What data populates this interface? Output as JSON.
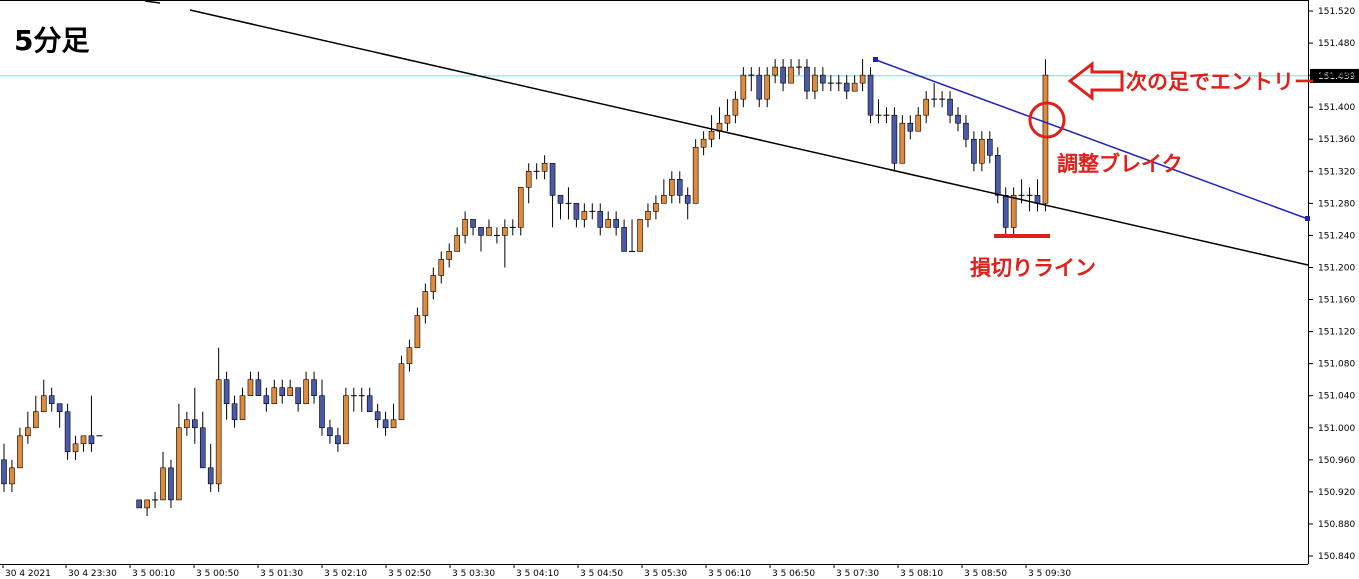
{
  "chart_data": {
    "type": "candlestick",
    "title": "5分足",
    "y_axis_ticks": [
      "151.520",
      "151.480",
      "151.440",
      "151.400",
      "151.360",
      "151.320",
      "151.280",
      "151.240",
      "151.200",
      "151.160",
      "151.120",
      "151.080",
      "151.040",
      "151.000",
      "150.960",
      "150.920",
      "150.880",
      "150.840"
    ],
    "ylim": [
      150.827,
      151.537
    ],
    "x_axis_ticks": [
      "30 4 2021",
      "30 4 23:30",
      "3 5 00:10",
      "3 5 00:50",
      "3 5 01:30",
      "3 5 02:10",
      "3 5 02:50",
      "3 5 03:30",
      "3 5 04:10",
      "3 5 04:50",
      "3 5 05:30",
      "3 5 06:10",
      "3 5 06:50",
      "3 5 07:30",
      "3 5 08:10",
      "3 5 08:50",
      "3 5 09:30"
    ],
    "current_price": "151.439",
    "colors": {
      "up": "#e08a3c",
      "down": "#4a5aa8",
      "wick": "#000000",
      "price_line": "#7fd6d6",
      "channel_line": "#1f23b4",
      "support_line": "#000000",
      "annotation": "#e0201a"
    },
    "annotations": {
      "entry": "次の足でエントリー",
      "break": "調整ブレイク",
      "stop": "損切りライン"
    },
    "candles": [
      [
        0,
        150.96,
        150.93,
        150.98,
        150.92
      ],
      [
        1,
        150.93,
        150.95,
        150.96,
        150.92
      ],
      [
        2,
        150.95,
        150.99,
        151.0,
        150.95
      ],
      [
        3,
        150.99,
        151.0,
        151.02,
        150.98
      ],
      [
        4,
        151.0,
        151.02,
        151.04,
        151.0
      ],
      [
        5,
        151.02,
        151.04,
        151.06,
        151.02
      ],
      [
        6,
        151.04,
        151.03,
        151.05,
        151.02
      ],
      [
        7,
        151.03,
        151.02,
        151.03,
        151.0
      ],
      [
        8,
        151.02,
        150.97,
        151.03,
        150.96
      ],
      [
        9,
        150.97,
        150.98,
        150.99,
        150.96
      ],
      [
        10,
        150.98,
        150.99,
        150.99,
        150.97
      ],
      [
        11,
        150.99,
        150.98,
        151.04,
        150.97
      ],
      [
        12,
        150.99,
        150.99,
        150.99,
        150.99
      ],
      [
        17,
        150.91,
        150.9,
        150.91,
        150.9
      ],
      [
        18,
        150.9,
        150.91,
        150.91,
        150.89
      ],
      [
        19,
        150.91,
        150.91,
        150.92,
        150.9
      ],
      [
        20,
        150.91,
        150.95,
        150.97,
        150.91
      ],
      [
        21,
        150.95,
        150.91,
        150.96,
        150.9
      ],
      [
        22,
        150.91,
        151.0,
        151.03,
        150.91
      ],
      [
        23,
        151.0,
        151.01,
        151.02,
        150.99
      ],
      [
        24,
        151.01,
        151.0,
        151.05,
        150.98
      ],
      [
        25,
        151.0,
        150.95,
        151.02,
        150.95
      ],
      [
        26,
        150.95,
        150.93,
        150.98,
        150.92
      ],
      [
        27,
        150.93,
        151.06,
        151.1,
        150.92
      ],
      [
        28,
        151.06,
        151.03,
        151.07,
        151.01
      ],
      [
        29,
        151.03,
        151.01,
        151.04,
        151.0
      ],
      [
        30,
        151.01,
        151.04,
        151.05,
        151.01
      ],
      [
        31,
        151.04,
        151.06,
        151.07,
        151.04
      ],
      [
        32,
        151.06,
        151.04,
        151.07,
        151.04
      ],
      [
        33,
        151.04,
        151.03,
        151.05,
        151.02
      ],
      [
        34,
        151.03,
        151.05,
        151.06,
        151.03
      ],
      [
        35,
        151.05,
        151.04,
        151.06,
        151.03
      ],
      [
        36,
        151.04,
        151.05,
        151.06,
        151.04
      ],
      [
        37,
        151.05,
        151.03,
        151.05,
        151.02
      ],
      [
        38,
        151.03,
        151.06,
        151.07,
        151.03
      ],
      [
        39,
        151.06,
        151.04,
        151.07,
        151.03
      ],
      [
        40,
        151.04,
        151.0,
        151.06,
        150.99
      ],
      [
        41,
        151.0,
        150.99,
        151.01,
        150.98
      ],
      [
        42,
        150.99,
        150.98,
        151.0,
        150.97
      ],
      [
        43,
        150.98,
        151.04,
        151.05,
        150.98
      ],
      [
        44,
        151.04,
        151.04,
        151.05,
        151.02
      ],
      [
        45,
        151.04,
        151.04,
        151.05,
        151.02
      ],
      [
        46,
        151.04,
        151.02,
        151.05,
        151.02
      ],
      [
        47,
        151.02,
        151.01,
        151.03,
        151.0
      ],
      [
        48,
        151.01,
        151.0,
        151.02,
        150.99
      ],
      [
        49,
        151.0,
        151.01,
        151.03,
        151.0
      ],
      [
        50,
        151.01,
        151.08,
        151.09,
        151.01
      ],
      [
        51,
        151.08,
        151.1,
        151.11,
        151.07
      ],
      [
        52,
        151.1,
        151.14,
        151.15,
        151.1
      ],
      [
        53,
        151.14,
        151.17,
        151.18,
        151.13
      ],
      [
        54,
        151.17,
        151.19,
        151.2,
        151.16
      ],
      [
        55,
        151.19,
        151.21,
        151.22,
        151.18
      ],
      [
        56,
        151.21,
        151.22,
        151.23,
        151.2
      ],
      [
        57,
        151.22,
        151.24,
        151.25,
        151.22
      ],
      [
        58,
        151.24,
        151.26,
        151.27,
        151.23
      ],
      [
        59,
        151.26,
        151.25,
        151.26,
        151.24
      ],
      [
        60,
        151.25,
        151.24,
        151.25,
        151.22
      ],
      [
        61,
        151.24,
        151.25,
        151.26,
        151.24
      ],
      [
        62,
        151.24,
        151.24,
        151.25,
        151.23
      ],
      [
        63,
        151.24,
        151.25,
        151.26,
        151.2
      ],
      [
        64,
        151.25,
        151.25,
        151.26,
        151.24
      ],
      [
        65,
        151.25,
        151.3,
        151.3,
        151.24
      ],
      [
        66,
        151.3,
        151.32,
        151.33,
        151.28
      ],
      [
        67,
        151.32,
        151.32,
        151.33,
        151.31
      ],
      [
        68,
        151.32,
        151.33,
        151.34,
        151.31
      ],
      [
        69,
        151.33,
        151.29,
        151.33,
        151.25
      ],
      [
        70,
        151.29,
        151.28,
        151.29,
        151.26
      ],
      [
        71,
        151.28,
        151.28,
        151.3,
        151.26
      ],
      [
        72,
        151.28,
        151.26,
        151.28,
        151.25
      ],
      [
        73,
        151.26,
        151.27,
        151.28,
        151.25
      ],
      [
        74,
        151.27,
        151.27,
        151.28,
        151.26
      ],
      [
        75,
        151.27,
        151.25,
        151.28,
        151.24
      ],
      [
        76,
        151.25,
        151.26,
        151.27,
        151.25
      ],
      [
        77,
        151.26,
        151.25,
        151.27,
        151.24
      ],
      [
        78,
        151.25,
        151.22,
        151.26,
        151.22
      ],
      [
        79,
        151.22,
        151.22,
        151.26,
        151.22
      ],
      [
        80,
        151.22,
        151.26,
        151.26,
        151.24
      ],
      [
        81,
        151.26,
        151.27,
        151.28,
        151.25
      ],
      [
        82,
        151.27,
        151.28,
        151.29,
        151.26
      ],
      [
        83,
        151.28,
        151.29,
        151.31,
        151.28
      ],
      [
        84,
        151.29,
        151.31,
        151.32,
        151.28
      ],
      [
        85,
        151.31,
        151.29,
        151.32,
        151.28
      ],
      [
        86,
        151.29,
        151.28,
        151.3,
        151.26
      ],
      [
        87,
        151.28,
        151.35,
        151.36,
        151.28
      ],
      [
        88,
        151.35,
        151.36,
        151.37,
        151.34
      ],
      [
        89,
        151.36,
        151.37,
        151.39,
        151.35
      ],
      [
        90,
        151.37,
        151.38,
        151.4,
        151.36
      ],
      [
        91,
        151.38,
        151.39,
        151.41,
        151.37
      ],
      [
        92,
        151.39,
        151.41,
        151.42,
        151.38
      ],
      [
        93,
        151.41,
        151.44,
        151.45,
        151.4
      ],
      [
        94,
        151.44,
        151.44,
        151.45,
        151.42
      ],
      [
        95,
        151.44,
        151.41,
        151.45,
        151.4
      ],
      [
        96,
        151.41,
        151.44,
        151.45,
        151.4
      ],
      [
        97,
        151.44,
        151.45,
        151.46,
        151.43
      ],
      [
        98,
        151.45,
        151.43,
        151.46,
        151.42
      ],
      [
        99,
        151.43,
        151.45,
        151.46,
        151.43
      ],
      [
        100,
        151.45,
        151.45,
        151.46,
        151.44
      ],
      [
        101,
        151.45,
        151.42,
        151.46,
        151.41
      ],
      [
        102,
        151.42,
        151.44,
        151.45,
        151.41
      ],
      [
        103,
        151.44,
        151.43,
        151.45,
        151.42
      ],
      [
        104,
        151.43,
        151.43,
        151.44,
        151.42
      ],
      [
        105,
        151.43,
        151.43,
        151.44,
        151.42
      ],
      [
        106,
        151.43,
        151.42,
        151.44,
        151.41
      ],
      [
        107,
        151.42,
        151.43,
        151.44,
        151.42
      ],
      [
        108,
        151.43,
        151.44,
        151.46,
        151.42
      ],
      [
        109,
        151.44,
        151.39,
        151.45,
        151.38
      ],
      [
        110,
        151.39,
        151.39,
        151.41,
        151.38
      ],
      [
        111,
        151.39,
        151.39,
        151.4,
        151.38
      ],
      [
        112,
        151.39,
        151.33,
        151.4,
        151.32
      ],
      [
        113,
        151.33,
        151.38,
        151.39,
        151.33
      ],
      [
        114,
        151.38,
        151.37,
        151.39,
        151.36
      ],
      [
        115,
        151.37,
        151.39,
        151.4,
        151.37
      ],
      [
        116,
        151.39,
        151.41,
        151.42,
        151.38
      ],
      [
        117,
        151.41,
        151.41,
        151.43,
        151.4
      ],
      [
        118,
        151.41,
        151.41,
        151.42,
        151.4
      ],
      [
        119,
        151.41,
        151.39,
        151.42,
        151.38
      ],
      [
        120,
        151.39,
        151.38,
        151.4,
        151.37
      ],
      [
        121,
        151.38,
        151.36,
        151.39,
        151.35
      ],
      [
        122,
        151.36,
        151.33,
        151.37,
        151.32
      ],
      [
        123,
        151.33,
        151.36,
        151.37,
        151.32
      ],
      [
        124,
        151.36,
        151.34,
        151.37,
        151.33
      ],
      [
        125,
        151.34,
        151.29,
        151.35,
        151.28
      ],
      [
        126,
        151.29,
        151.25,
        151.3,
        151.24
      ],
      [
        127,
        151.25,
        151.29,
        151.3,
        151.24
      ],
      [
        128,
        151.29,
        151.29,
        151.31,
        151.28
      ],
      [
        129,
        151.29,
        151.29,
        151.3,
        151.27
      ],
      [
        130,
        151.29,
        151.28,
        151.31,
        151.27
      ],
      [
        131,
        151.28,
        151.44,
        151.46,
        151.27
      ]
    ]
  }
}
